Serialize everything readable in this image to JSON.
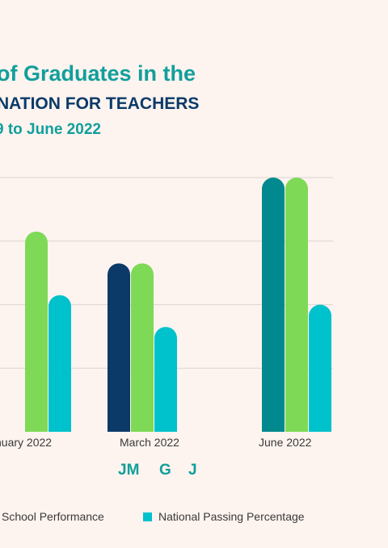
{
  "title": {
    "line1": "of Graduates in the",
    "line2": "NATION FOR TEACHERS",
    "line3": "9 to June 2022"
  },
  "colors": {
    "background": "#fdf3ef",
    "teal": "#119f9b",
    "navy": "#0b3a68",
    "green": "#7ed957",
    "cyan": "#00c2cc",
    "grid": "#dcd6d3"
  },
  "chart_data": {
    "type": "bar",
    "categories": [
      "nuary 2022",
      "March 2022",
      "June 2022"
    ],
    "series": [
      {
        "name": "l School Performance",
        "values": [
          null,
          53,
          80
        ],
        "colors": [
          "#0b3a68",
          "#0b3a68",
          "#01898f"
        ]
      },
      {
        "name": "",
        "values": [
          63,
          53,
          80
        ],
        "color": "#7ed957"
      },
      {
        "name": "National Passing Percentage",
        "values": [
          43,
          33,
          40
        ],
        "color": "#00c2cc"
      }
    ],
    "ylim": [
      0,
      80
    ],
    "gridlines": [
      20,
      40,
      60,
      80
    ],
    "grid": true,
    "annotation": {
      "letters": [
        "JM",
        "G",
        "J"
      ]
    },
    "legend": {
      "position": "bottom",
      "entries": [
        {
          "label": "l School Performance",
          "color": "#0b3a68"
        },
        {
          "label": "National Passing Percentage",
          "color": "#00c2cc"
        }
      ]
    }
  }
}
